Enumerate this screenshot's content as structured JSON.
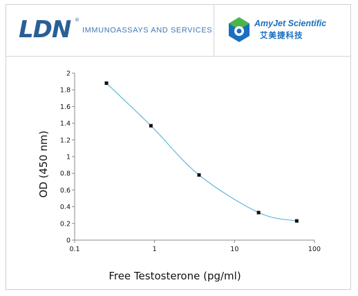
{
  "header": {
    "ldn_logo": "LDN",
    "ldn_registered": "®",
    "ldn_tagline": "IMMUNOASSAYS AND SERVICES",
    "amyjet_name": "AmyJet Scientific",
    "amyjet_chinese": "艾美捷科技"
  },
  "chart_data": {
    "type": "line",
    "xscale": "log",
    "xlim": [
      0.1,
      100
    ],
    "ylim": [
      0,
      2
    ],
    "x_ticks": [
      0.1,
      1,
      10,
      100
    ],
    "x_tick_labels": [
      "0.1",
      "1",
      "10",
      "100"
    ],
    "y_ticks": [
      0,
      0.2,
      0.4,
      0.6,
      0.8,
      1,
      1.2,
      1.4,
      1.6,
      1.8,
      2
    ],
    "y_tick_labels": [
      "0",
      "0.2",
      "0.4",
      "0.6",
      "0.8",
      "1",
      "1.2",
      "1.4",
      "1.6",
      "1.8",
      "2"
    ],
    "xlabel": "Free Testosterone (pg/ml)",
    "ylabel": "OD (450 nm)",
    "grid": false,
    "series": [
      {
        "x": [
          0.25,
          0.9,
          3.6,
          20,
          60
        ],
        "y": [
          1.88,
          1.37,
          0.78,
          0.33,
          0.23
        ],
        "line_color": "#5fb7d8",
        "marker_color": "#111111"
      }
    ]
  }
}
